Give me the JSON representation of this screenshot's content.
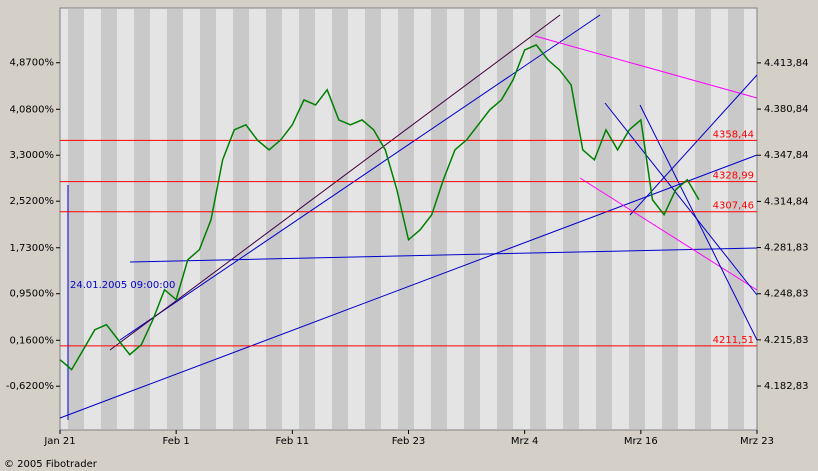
{
  "chart_data": {
    "type": "line",
    "categories": [
      "Jan 21",
      null,
      null,
      null,
      null,
      null,
      null,
      null,
      null,
      null,
      "Feb 1",
      null,
      null,
      null,
      null,
      null,
      null,
      null,
      null,
      null,
      "Feb 11",
      null,
      null,
      null,
      null,
      null,
      null,
      null,
      null,
      null,
      "Feb 23",
      null,
      null,
      null,
      null,
      null,
      null,
      null,
      null,
      null,
      "Mrz 4",
      null,
      null,
      null,
      null,
      null,
      null,
      null,
      null,
      null,
      "Mrz 16",
      null,
      null,
      null,
      null,
      null,
      null,
      null,
      null,
      null,
      "Mrz 23"
    ],
    "series": [
      {
        "color": "#008000",
        "values": [
          4201.7,
          4194.6,
          4208.8,
          4223.1,
          4226.7,
          4216.0,
          4205.3,
          4212.4,
          4230.3,
          4251.7,
          4244.6,
          4273.1,
          4280.3,
          4301.7,
          4344.5,
          4366.0,
          4369.6,
          4358.6,
          4351.7,
          4358.8,
          4369.6,
          4387.4,
          4383.8,
          4394.6,
          4373.1,
          4369.6,
          4373.1,
          4366.0,
          4351.7,
          4323.1,
          4287.4,
          4294.5,
          4305.3,
          4330.3,
          4351.7,
          4358.8,
          4369.6,
          4380.3,
          4387.4,
          4401.7,
          4423.1,
          4426.7,
          4416.0,
          4408.8,
          4398.1,
          4351.7,
          4344.5,
          4366.0,
          4351.7,
          4366.0,
          4373.1,
          4316.0,
          4305.3,
          4323.1,
          4330.3,
          4316.0,
          null,
          null,
          null,
          null,
          null
        ]
      }
    ],
    "ylim": [
      4151.4,
      4453.1
    ],
    "yticks": [
      {
        "value": 4182.83,
        "label": "4.182,83"
      },
      {
        "value": 4215.83,
        "label": "4.215,83"
      },
      {
        "value": 4248.83,
        "label": "4.248,83"
      },
      {
        "value": 4281.83,
        "label": "4.281,83"
      },
      {
        "value": 4314.84,
        "label": "4.314,84"
      },
      {
        "value": 4347.84,
        "label": "4.347,84"
      },
      {
        "value": 4380.84,
        "label": "4.380,84"
      },
      {
        "value": 4413.84,
        "label": "4.413,84"
      }
    ],
    "y2lim": [
      -1.363,
      5.799
    ],
    "y2ticks": [
      {
        "value": -0.62,
        "label": "-0,6200%"
      },
      {
        "value": 0.16,
        "label": "0,1600%"
      },
      {
        "value": 0.95,
        "label": "0,9500%"
      },
      {
        "value": 1.73,
        "label": "1,7300%"
      },
      {
        "value": 2.52,
        "label": "2,5200%"
      },
      {
        "value": 3.3,
        "label": "3,3000%"
      },
      {
        "value": 4.08,
        "label": "4,0800%"
      },
      {
        "value": 4.87,
        "label": "4,8700%"
      }
    ],
    "levels": [
      {
        "value": 4358.44,
        "label": "4358,44"
      },
      {
        "value": 4328.99,
        "label": "4328,99"
      },
      {
        "value": 4307.46,
        "label": "4307,46"
      },
      {
        "value": 4211.51,
        "label": "4211,51"
      }
    ],
    "level_color": "#ff0000",
    "annotation": "24.01.2005 09:00:00",
    "footer": "© 2005 Fibotrader"
  }
}
